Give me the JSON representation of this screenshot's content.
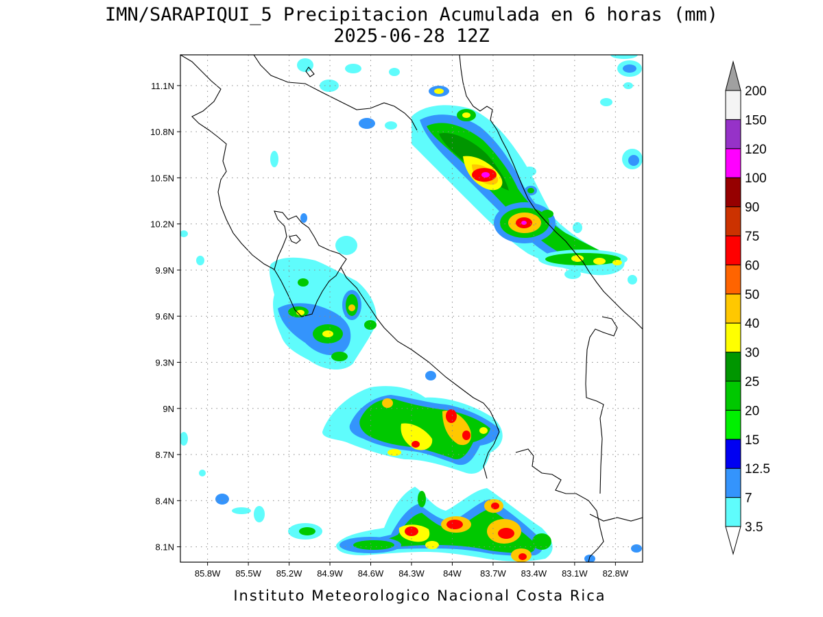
{
  "title": {
    "line1": "IMN/SARAPIQUI_5 Precipitacion Acumulada en 6 horas (mm)",
    "line2": "2025-06-28 12Z"
  },
  "footer": "Instituto Meteorologico Nacional Costa Rica",
  "map": {
    "lon_range": [
      -86.0,
      -82.6
    ],
    "lat_range": [
      8.0,
      11.3
    ],
    "lon_ticks": [
      {
        "value": -85.8,
        "label": "85.8W"
      },
      {
        "value": -85.5,
        "label": "85.5W"
      },
      {
        "value": -85.2,
        "label": "85.2W"
      },
      {
        "value": -84.9,
        "label": "84.9W"
      },
      {
        "value": -84.6,
        "label": "84.6W"
      },
      {
        "value": -84.3,
        "label": "84.3W"
      },
      {
        "value": -84.0,
        "label": "84W"
      },
      {
        "value": -83.7,
        "label": "83.7W"
      },
      {
        "value": -83.4,
        "label": "83.4W"
      },
      {
        "value": -83.1,
        "label": "83.1W"
      },
      {
        "value": -82.8,
        "label": "82.8W"
      }
    ],
    "lat_ticks": [
      {
        "value": 8.1,
        "label": "8.1N"
      },
      {
        "value": 8.4,
        "label": "8.4N"
      },
      {
        "value": 8.7,
        "label": "8.7N"
      },
      {
        "value": 9.0,
        "label": "9N"
      },
      {
        "value": 9.3,
        "label": "9.3N"
      },
      {
        "value": 9.6,
        "label": "9.6N"
      },
      {
        "value": 9.9,
        "label": "9.9N"
      },
      {
        "value": 10.2,
        "label": "10.2N"
      },
      {
        "value": 10.5,
        "label": "10.5N"
      },
      {
        "value": 10.8,
        "label": "10.8N"
      },
      {
        "value": 11.1,
        "label": "11.1N"
      }
    ],
    "grid": true,
    "precip_cells": [
      {
        "lon": -84.02,
        "lat": 10.78,
        "rx": 0.1,
        "ry": 0.05,
        "level": 7
      },
      {
        "lon": -83.88,
        "lat": 10.6,
        "rx": 0.18,
        "ry": 0.09,
        "level": 6
      },
      {
        "lon": -83.8,
        "lat": 10.53,
        "rx": 0.1,
        "ry": 0.06,
        "level": 11
      },
      {
        "lon": -83.78,
        "lat": 10.46,
        "rx": 0.08,
        "ry": 0.05,
        "level": 5
      },
      {
        "lon": -83.85,
        "lat": 10.89,
        "rx": 0.05,
        "ry": 0.04,
        "level": 6
      },
      {
        "lon": -83.97,
        "lat": 11.07,
        "rx": 0.04,
        "ry": 0.03,
        "level": 5
      },
      {
        "lon": -83.46,
        "lat": 10.18,
        "rx": 0.12,
        "ry": 0.07,
        "level": 8
      },
      {
        "lon": -83.42,
        "lat": 10.19,
        "rx": 0.04,
        "ry": 0.03,
        "level": 11
      },
      {
        "lon": -83.35,
        "lat": 10.41,
        "rx": 0.05,
        "ry": 0.03,
        "level": 5
      },
      {
        "lon": -83.05,
        "lat": 9.98,
        "rx": 0.06,
        "ry": 0.04,
        "level": 5
      },
      {
        "lon": -82.9,
        "lat": 9.96,
        "rx": 0.06,
        "ry": 0.04,
        "level": 6
      },
      {
        "lon": -82.75,
        "lat": 9.95,
        "rx": 0.05,
        "ry": 0.03,
        "level": 6
      },
      {
        "lon": -84.58,
        "lat": 9.64,
        "rx": 0.07,
        "ry": 0.08,
        "level": 7
      },
      {
        "lon": -85.07,
        "lat": 9.62,
        "rx": 0.06,
        "ry": 0.04,
        "level": 6
      },
      {
        "lon": -84.82,
        "lat": 9.5,
        "rx": 0.08,
        "ry": 0.05,
        "level": 5
      },
      {
        "lon": -84.5,
        "lat": 9.53,
        "rx": 0.04,
        "ry": 0.03,
        "level": 5
      },
      {
        "lon": -84.0,
        "lat": 8.97,
        "rx": 0.07,
        "ry": 0.08,
        "level": 8
      },
      {
        "lon": -84.22,
        "lat": 8.88,
        "rx": 0.08,
        "ry": 0.06,
        "level": 7
      },
      {
        "lon": -84.3,
        "lat": 8.78,
        "rx": 0.07,
        "ry": 0.05,
        "level": 8
      },
      {
        "lon": -83.9,
        "lat": 8.8,
        "rx": 0.06,
        "ry": 0.05,
        "level": 8
      },
      {
        "lon": -84.44,
        "lat": 9.04,
        "rx": 0.05,
        "ry": 0.04,
        "level": 7
      },
      {
        "lon": -84.3,
        "lat": 8.2,
        "rx": 0.08,
        "ry": 0.05,
        "level": 8
      },
      {
        "lon": -84.06,
        "lat": 8.15,
        "rx": 0.06,
        "ry": 0.05,
        "level": 7
      },
      {
        "lon": -83.9,
        "lat": 8.25,
        "rx": 0.1,
        "ry": 0.06,
        "level": 8
      },
      {
        "lon": -83.5,
        "lat": 8.2,
        "rx": 0.1,
        "ry": 0.07,
        "level": 8
      },
      {
        "lon": -83.55,
        "lat": 8.38,
        "rx": 0.06,
        "ry": 0.04,
        "level": 8
      },
      {
        "lon": -83.4,
        "lat": 8.05,
        "rx": 0.06,
        "ry": 0.05,
        "level": 8
      },
      {
        "lon": -85.05,
        "lat": 8.2,
        "rx": 0.05,
        "ry": 0.03,
        "level": 5
      },
      {
        "lon": -84.55,
        "lat": 8.1,
        "rx": 0.06,
        "ry": 0.03,
        "level": 5
      },
      {
        "lon": -85.66,
        "lat": 8.4,
        "rx": 0.04,
        "ry": 0.03,
        "level": 5
      }
    ]
  },
  "colorbar": {
    "levels": [
      {
        "label": "3.5",
        "color": "#5ffcfc"
      },
      {
        "label": "7",
        "color": "#3494fc"
      },
      {
        "label": "12.5",
        "color": "#0000f2"
      },
      {
        "label": "15",
        "color": "#00f000"
      },
      {
        "label": "20",
        "color": "#00c800"
      },
      {
        "label": "25",
        "color": "#009600"
      },
      {
        "label": "30",
        "color": "#ffff00"
      },
      {
        "label": "40",
        "color": "#ffc800"
      },
      {
        "label": "50",
        "color": "#ff6400"
      },
      {
        "label": "60",
        "color": "#ff0000"
      },
      {
        "label": "75",
        "color": "#cc3200"
      },
      {
        "label": "90",
        "color": "#960000"
      },
      {
        "label": "100",
        "color": "#ff00ff"
      },
      {
        "label": "120",
        "color": "#9632c8"
      },
      {
        "label": "150",
        "color": "#f4f4f4"
      },
      {
        "label": "200",
        "color": "#a0a0a0"
      }
    ],
    "bottom_triangle_color": "#ffffff",
    "top_triangle_color": "#a0a0a0"
  }
}
